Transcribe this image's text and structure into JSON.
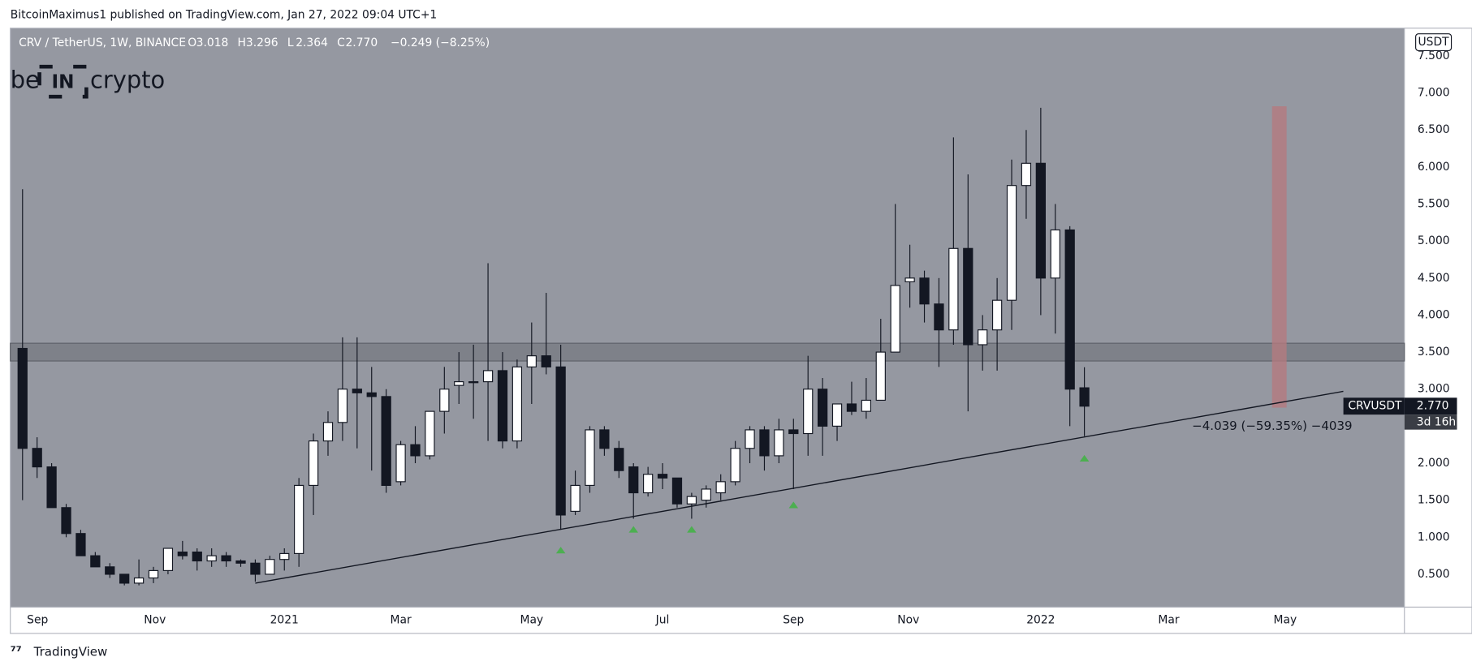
{
  "header": {
    "publisher": "BitcoinMaximus1 published on TradingView.com, Jan 27, 2022 09:04 UTC+1"
  },
  "footer": {
    "brand": "TradingView"
  },
  "watermark": {
    "left": "be",
    "middle": "IN",
    "right": "crypto"
  },
  "chart_data": {
    "type": "candlestick",
    "symbol": "CRV / TetherUS, 1W, BINANCE",
    "ohlc_legend": [
      {
        "key": "O",
        "value": "3.018"
      },
      {
        "key": "H",
        "value": "3.296"
      },
      {
        "key": "L",
        "value": "2.364"
      },
      {
        "key": "C",
        "value": "2.770"
      }
    ],
    "change": "−0.249 (−8.25%)",
    "currency": "USDT",
    "up_color": "#ffffff",
    "down_color": "#131722",
    "background": "#9598a1",
    "open": [
      3.55,
      2.2,
      1.95,
      1.4,
      1.05,
      0.75,
      0.6,
      0.5,
      0.38,
      0.45,
      0.55,
      0.8,
      0.8,
      0.68,
      0.75,
      0.68,
      0.65,
      0.5,
      0.7,
      0.78,
      1.7,
      2.3,
      2.55,
      3.0,
      2.95,
      2.9,
      1.75,
      2.25,
      2.1,
      2.7,
      3.05,
      3.1,
      3.1,
      3.25,
      2.3,
      3.3,
      3.45,
      3.3,
      1.35,
      1.7,
      2.45,
      2.2,
      1.95,
      1.6,
      1.85,
      1.8,
      1.45,
      1.5,
      1.6,
      1.75,
      2.2,
      2.45,
      2.1,
      2.45,
      2.4,
      3.0,
      2.5,
      2.8,
      2.7,
      2.85,
      3.5,
      4.45,
      4.5,
      4.15,
      3.8,
      4.9,
      3.6,
      3.8,
      4.2,
      5.75,
      6.05,
      4.5,
      5.15,
      3.018
    ],
    "high": [
      5.7,
      2.35,
      2.0,
      1.45,
      1.1,
      0.8,
      0.65,
      0.5,
      0.7,
      0.6,
      0.85,
      0.95,
      0.85,
      0.85,
      0.8,
      0.7,
      0.7,
      0.75,
      0.85,
      1.8,
      2.4,
      2.7,
      3.7,
      3.7,
      3.3,
      3.0,
      2.3,
      2.5,
      2.7,
      3.3,
      3.5,
      3.6,
      4.7,
      3.5,
      3.4,
      3.9,
      4.3,
      3.6,
      1.9,
      2.5,
      2.5,
      2.3,
      2.0,
      1.95,
      2.0,
      1.8,
      1.6,
      1.7,
      1.85,
      2.3,
      2.5,
      2.5,
      2.6,
      2.6,
      3.45,
      3.15,
      2.8,
      3.1,
      3.15,
      3.95,
      5.5,
      4.95,
      4.6,
      4.5,
      6.4,
      5.9,
      4.0,
      4.5,
      6.1,
      6.5,
      6.8,
      5.5,
      5.2,
      3.296
    ],
    "low": [
      1.5,
      1.8,
      1.4,
      1.0,
      0.75,
      0.6,
      0.45,
      0.35,
      0.35,
      0.38,
      0.5,
      0.7,
      0.55,
      0.6,
      0.6,
      0.6,
      0.4,
      0.5,
      0.55,
      0.6,
      1.3,
      2.1,
      2.3,
      2.2,
      1.9,
      1.6,
      1.7,
      2.0,
      2.05,
      2.4,
      2.8,
      2.6,
      2.3,
      2.2,
      2.2,
      2.8,
      3.2,
      1.1,
      1.3,
      1.6,
      2.1,
      1.8,
      1.25,
      1.55,
      1.65,
      1.4,
      1.25,
      1.4,
      1.5,
      1.7,
      2.0,
      1.9,
      2.0,
      1.65,
      2.1,
      2.1,
      2.3,
      2.65,
      2.6,
      2.9,
      3.5,
      4.1,
      3.9,
      3.3,
      3.6,
      2.7,
      3.25,
      3.25,
      3.8,
      5.3,
      4.0,
      3.75,
      2.5,
      2.364
    ],
    "close": [
      2.2,
      1.95,
      1.4,
      1.05,
      0.75,
      0.6,
      0.5,
      0.38,
      0.45,
      0.55,
      0.85,
      0.75,
      0.68,
      0.75,
      0.68,
      0.65,
      0.5,
      0.7,
      0.78,
      1.7,
      2.3,
      2.55,
      3.0,
      2.95,
      2.9,
      1.7,
      2.25,
      2.1,
      2.7,
      3.0,
      3.1,
      3.1,
      3.25,
      2.3,
      3.3,
      3.45,
      3.3,
      1.3,
      1.7,
      2.45,
      2.2,
      1.9,
      1.6,
      1.85,
      1.8,
      1.45,
      1.55,
      1.65,
      1.75,
      2.2,
      2.45,
      2.1,
      2.45,
      2.4,
      3.0,
      2.5,
      2.8,
      2.7,
      2.85,
      3.5,
      4.4,
      4.5,
      4.15,
      3.8,
      4.9,
      3.6,
      3.8,
      4.2,
      5.75,
      6.05,
      4.5,
      5.15,
      3.0,
      2.77
    ],
    "xlim": [
      -0.84,
      95
    ],
    "xticks": [
      {
        "value": 1.03,
        "label": "Sep"
      },
      {
        "value": 9.1,
        "label": "Nov"
      },
      {
        "value": 18,
        "label": "2021"
      },
      {
        "value": 26,
        "label": "Mar"
      },
      {
        "value": 35,
        "label": "May"
      },
      {
        "value": 44,
        "label": "Jul"
      },
      {
        "value": 53,
        "label": "Sep"
      },
      {
        "value": 60.9,
        "label": "Nov"
      },
      {
        "value": 70,
        "label": "2022"
      },
      {
        "value": 78.8,
        "label": "Mar"
      },
      {
        "value": 86.8,
        "label": "May"
      }
    ],
    "ylim": [
      0.056,
      7.875
    ],
    "yticks": [
      {
        "value": 0.5,
        "label": "0.500"
      },
      {
        "value": 1,
        "label": "1.000"
      },
      {
        "value": 1.5,
        "label": "1.500"
      },
      {
        "value": 2,
        "label": "2.000"
      },
      {
        "value": 2.5,
        "label": "2.500"
      },
      {
        "value": 3,
        "label": "3.000"
      },
      {
        "value": 3.5,
        "label": "3.500"
      },
      {
        "value": 4,
        "label": "4.000"
      },
      {
        "value": 4.5,
        "label": "4.500"
      },
      {
        "value": 5,
        "label": "5.000"
      },
      {
        "value": 5.5,
        "label": "5.500"
      },
      {
        "value": 6,
        "label": "6.000"
      },
      {
        "value": 6.5,
        "label": "6.500"
      },
      {
        "value": 7,
        "label": "7.000"
      },
      {
        "value": 7.5,
        "label": "7.500"
      }
    ],
    "grid": false,
    "zone": {
      "values": [
        3.38,
        3.62
      ],
      "color": "#6f727a"
    },
    "trendline": {
      "x": [
        16,
        90.8
      ],
      "y": [
        0.38,
        2.97
      ],
      "color": "#131722"
    },
    "markers": {
      "x": [
        37,
        42,
        46,
        53,
        73
      ],
      "y": [
        0.82,
        1.1,
        1.1,
        1.43,
        2.06
      ],
      "color": "#4caf50"
    },
    "projection": {
      "x": [
        85.9,
        86.9
      ],
      "y": [
        2.75,
        6.82
      ],
      "color": "#b47a80"
    },
    "measurement": {
      "x": 80.4,
      "y": 2.5,
      "label": "−4.039 (−59.35%) −4039"
    },
    "price_tag": {
      "name": "CRVUSDT",
      "value": 2.77,
      "value_label": "2.770",
      "countdown": "3d 16h"
    }
  }
}
